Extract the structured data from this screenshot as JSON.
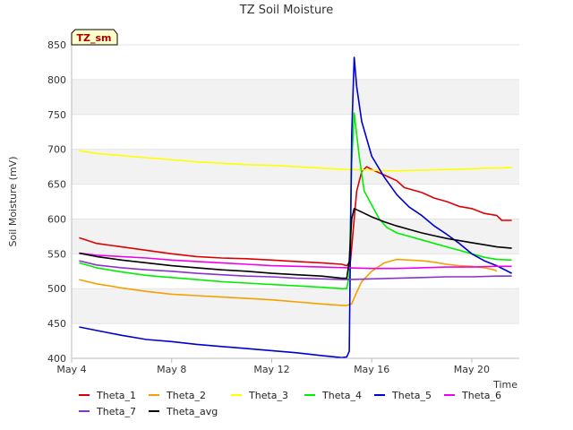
{
  "chart_data": {
    "type": "line",
    "title": "TZ Soil Moisture",
    "xlabel": "Time",
    "ylabel": "Soil Moisture (mV)",
    "badge": "TZ_sm",
    "xlim": [
      0,
      17.9
    ],
    "ylim": [
      400,
      850
    ],
    "x_ticks": [
      {
        "x": 0,
        "label": "May 4"
      },
      {
        "x": 4,
        "label": "May 8"
      },
      {
        "x": 8,
        "label": "May 12"
      },
      {
        "x": 12,
        "label": "May 16"
      },
      {
        "x": 16,
        "label": "May 20"
      }
    ],
    "y_ticks": [
      400,
      450,
      500,
      550,
      600,
      650,
      700,
      750,
      800,
      850
    ],
    "grid_bands": true,
    "legend_position": "bottom",
    "series": [
      {
        "name": "Theta_1",
        "color": "#dd0000",
        "points": [
          [
            0.3,
            573
          ],
          [
            1.0,
            565
          ],
          [
            2.0,
            560
          ],
          [
            3.0,
            555
          ],
          [
            4.0,
            550
          ],
          [
            5.0,
            546
          ],
          [
            6.0,
            544
          ],
          [
            7.0,
            543
          ],
          [
            8.0,
            541
          ],
          [
            9.0,
            539
          ],
          [
            10.0,
            537
          ],
          [
            10.8,
            535
          ],
          [
            11.0,
            533
          ],
          [
            11.15,
            540
          ],
          [
            11.3,
            600
          ],
          [
            11.4,
            640
          ],
          [
            11.6,
            668
          ],
          [
            11.8,
            675
          ],
          [
            12.0,
            671
          ],
          [
            12.5,
            663
          ],
          [
            13.0,
            655
          ],
          [
            13.3,
            645
          ],
          [
            14.0,
            638
          ],
          [
            14.5,
            630
          ],
          [
            15.0,
            625
          ],
          [
            15.5,
            618
          ],
          [
            16.0,
            615
          ],
          [
            16.5,
            608
          ],
          [
            17.0,
            605
          ],
          [
            17.2,
            598
          ],
          [
            17.6,
            598
          ]
        ]
      },
      {
        "name": "Theta_2",
        "color": "#f5a000",
        "points": [
          [
            0.3,
            513
          ],
          [
            1.0,
            507
          ],
          [
            2.0,
            501
          ],
          [
            3.0,
            496
          ],
          [
            4.0,
            492
          ],
          [
            5.0,
            490
          ],
          [
            6.0,
            488
          ],
          [
            7.0,
            486
          ],
          [
            8.0,
            484
          ],
          [
            9.0,
            481
          ],
          [
            10.0,
            478
          ],
          [
            10.8,
            476
          ],
          [
            11.0,
            476
          ],
          [
            11.2,
            478
          ],
          [
            11.4,
            495
          ],
          [
            11.6,
            510
          ],
          [
            12.0,
            525
          ],
          [
            12.5,
            537
          ],
          [
            13.0,
            542
          ],
          [
            13.5,
            541
          ],
          [
            14.0,
            540
          ],
          [
            14.5,
            538
          ],
          [
            15.0,
            535
          ],
          [
            15.5,
            533
          ],
          [
            16.0,
            532
          ],
          [
            16.5,
            530
          ],
          [
            16.9,
            527
          ],
          [
            17.0,
            525
          ]
        ]
      },
      {
        "name": "Theta_3",
        "color": "#ffff00",
        "points": [
          [
            0.3,
            698
          ],
          [
            1.0,
            694
          ],
          [
            2.0,
            691
          ],
          [
            3.0,
            688
          ],
          [
            4.0,
            685
          ],
          [
            5.0,
            682
          ],
          [
            6.0,
            680
          ],
          [
            7.0,
            678
          ],
          [
            8.0,
            677
          ],
          [
            9.0,
            675
          ],
          [
            10.0,
            673
          ],
          [
            11.0,
            671
          ],
          [
            12.0,
            670
          ],
          [
            13.0,
            669
          ],
          [
            14.0,
            670
          ],
          [
            15.0,
            671
          ],
          [
            16.0,
            672
          ],
          [
            16.5,
            673
          ],
          [
            17.0,
            673
          ],
          [
            17.6,
            674
          ]
        ]
      },
      {
        "name": "Theta_4",
        "color": "#00ee00",
        "points": [
          [
            0.3,
            537
          ],
          [
            1.0,
            530
          ],
          [
            2.0,
            524
          ],
          [
            3.0,
            519
          ],
          [
            4.0,
            516
          ],
          [
            5.0,
            513
          ],
          [
            6.0,
            510
          ],
          [
            7.0,
            508
          ],
          [
            8.0,
            506
          ],
          [
            9.0,
            504
          ],
          [
            10.0,
            502
          ],
          [
            10.8,
            500
          ],
          [
            11.0,
            500
          ],
          [
            11.1,
            520
          ],
          [
            11.2,
            680
          ],
          [
            11.3,
            752
          ],
          [
            11.5,
            690
          ],
          [
            11.7,
            640
          ],
          [
            12.0,
            620
          ],
          [
            12.3,
            600
          ],
          [
            12.6,
            588
          ],
          [
            13.0,
            580
          ],
          [
            13.5,
            575
          ],
          [
            14.0,
            570
          ],
          [
            14.5,
            565
          ],
          [
            15.0,
            560
          ],
          [
            15.5,
            555
          ],
          [
            16.0,
            550
          ],
          [
            16.5,
            545
          ],
          [
            17.0,
            542
          ],
          [
            17.6,
            541
          ]
        ]
      },
      {
        "name": "Theta_5",
        "color": "#0000cc",
        "points": [
          [
            0.3,
            445
          ],
          [
            1.0,
            440
          ],
          [
            2.0,
            433
          ],
          [
            3.0,
            427
          ],
          [
            4.0,
            424
          ],
          [
            5.0,
            420
          ],
          [
            6.0,
            417
          ],
          [
            7.0,
            414
          ],
          [
            8.0,
            411
          ],
          [
            9.0,
            408
          ],
          [
            10.0,
            404
          ],
          [
            10.8,
            401
          ],
          [
            11.0,
            402
          ],
          [
            11.1,
            410
          ],
          [
            11.2,
            720
          ],
          [
            11.3,
            832
          ],
          [
            11.4,
            790
          ],
          [
            11.6,
            740
          ],
          [
            12.0,
            690
          ],
          [
            12.5,
            660
          ],
          [
            13.0,
            635
          ],
          [
            13.5,
            617
          ],
          [
            14.0,
            605
          ],
          [
            14.5,
            590
          ],
          [
            15.0,
            578
          ],
          [
            15.5,
            565
          ],
          [
            16.0,
            550
          ],
          [
            16.5,
            540
          ],
          [
            17.0,
            533
          ],
          [
            17.6,
            522
          ]
        ]
      },
      {
        "name": "Theta_6",
        "color": "#ee00ee",
        "points": [
          [
            0.3,
            551
          ],
          [
            1.0,
            548
          ],
          [
            2.0,
            546
          ],
          [
            3.0,
            544
          ],
          [
            4.0,
            541
          ],
          [
            5.0,
            539
          ],
          [
            6.0,
            537
          ],
          [
            7.0,
            535
          ],
          [
            8.0,
            533
          ],
          [
            9.0,
            532
          ],
          [
            10.0,
            531
          ],
          [
            11.0,
            530
          ],
          [
            12.0,
            529
          ],
          [
            13.0,
            529
          ],
          [
            14.0,
            530
          ],
          [
            15.0,
            531
          ],
          [
            16.0,
            531
          ],
          [
            17.0,
            532
          ],
          [
            17.6,
            532
          ]
        ]
      },
      {
        "name": "Theta_7",
        "color": "#8833cc",
        "points": [
          [
            0.3,
            540
          ],
          [
            1.0,
            534
          ],
          [
            2.0,
            530
          ],
          [
            3.0,
            527
          ],
          [
            4.0,
            525
          ],
          [
            5.0,
            522
          ],
          [
            6.0,
            520
          ],
          [
            7.0,
            518
          ],
          [
            8.0,
            517
          ],
          [
            9.0,
            515
          ],
          [
            10.0,
            514
          ],
          [
            11.0,
            513
          ],
          [
            12.0,
            514
          ],
          [
            13.0,
            515
          ],
          [
            14.0,
            516
          ],
          [
            15.0,
            517
          ],
          [
            16.0,
            517
          ],
          [
            17.0,
            518
          ],
          [
            17.6,
            518
          ]
        ]
      },
      {
        "name": "Theta_avg",
        "color": "#000000",
        "points": [
          [
            0.3,
            551
          ],
          [
            1.0,
            546
          ],
          [
            2.0,
            541
          ],
          [
            3.0,
            537
          ],
          [
            4.0,
            533
          ],
          [
            5.0,
            530
          ],
          [
            6.0,
            527
          ],
          [
            7.0,
            525
          ],
          [
            8.0,
            522
          ],
          [
            9.0,
            520
          ],
          [
            10.0,
            518
          ],
          [
            10.8,
            515
          ],
          [
            11.0,
            515
          ],
          [
            11.1,
            540
          ],
          [
            11.2,
            600
          ],
          [
            11.3,
            615
          ],
          [
            11.6,
            610
          ],
          [
            12.0,
            603
          ],
          [
            12.5,
            596
          ],
          [
            13.0,
            590
          ],
          [
            13.5,
            585
          ],
          [
            14.0,
            580
          ],
          [
            14.5,
            576
          ],
          [
            15.0,
            572
          ],
          [
            15.5,
            569
          ],
          [
            16.0,
            566
          ],
          [
            16.5,
            563
          ],
          [
            17.0,
            560
          ],
          [
            17.6,
            558
          ]
        ]
      }
    ]
  }
}
